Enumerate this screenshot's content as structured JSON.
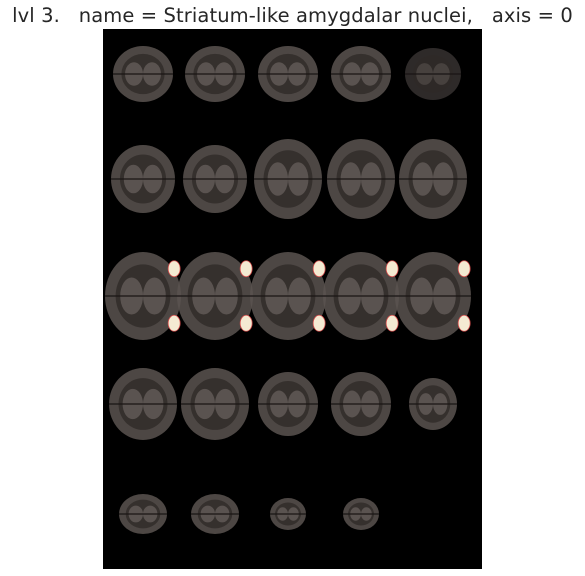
{
  "figure": {
    "title": "lvl 3.   name = Striatum-like amygdalar nuclei,   axis = 0",
    "background": "#ffffff",
    "panel_background": "#000000",
    "tissue_color": "#5a5350",
    "highlight_color": "#f4ead2",
    "highlight_edge_color": "#d24a4a"
  },
  "montage": {
    "rows": 5,
    "cols": 5,
    "slices": [
      {
        "row": 0,
        "col": 0,
        "shape": "olfactory"
      },
      {
        "row": 0,
        "col": 1,
        "shape": "olfactory"
      },
      {
        "row": 0,
        "col": 2,
        "shape": "olfactory"
      },
      {
        "row": 0,
        "col": 3,
        "shape": "olfactory"
      },
      {
        "row": 0,
        "col": 4,
        "shape": "olfactory-faint"
      },
      {
        "row": 1,
        "col": 0,
        "shape": "forebrain-small"
      },
      {
        "row": 1,
        "col": 1,
        "shape": "forebrain-small"
      },
      {
        "row": 1,
        "col": 2,
        "shape": "forebrain"
      },
      {
        "row": 1,
        "col": 3,
        "shape": "forebrain"
      },
      {
        "row": 1,
        "col": 4,
        "shape": "forebrain"
      },
      {
        "row": 2,
        "col": 0,
        "shape": "midbrain",
        "highlight": true
      },
      {
        "row": 2,
        "col": 1,
        "shape": "midbrain",
        "highlight": true
      },
      {
        "row": 2,
        "col": 2,
        "shape": "midbrain",
        "highlight": true
      },
      {
        "row": 2,
        "col": 3,
        "shape": "midbrain",
        "highlight": true
      },
      {
        "row": 2,
        "col": 4,
        "shape": "midbrain",
        "highlight": true
      },
      {
        "row": 3,
        "col": 0,
        "shape": "caudal"
      },
      {
        "row": 3,
        "col": 1,
        "shape": "caudal"
      },
      {
        "row": 3,
        "col": 2,
        "shape": "caudal-small"
      },
      {
        "row": 3,
        "col": 3,
        "shape": "caudal-small"
      },
      {
        "row": 3,
        "col": 4,
        "shape": "caudal-tiny"
      },
      {
        "row": 4,
        "col": 0,
        "shape": "hind"
      },
      {
        "row": 4,
        "col": 1,
        "shape": "hind"
      },
      {
        "row": 4,
        "col": 2,
        "shape": "hind-small"
      },
      {
        "row": 4,
        "col": 3,
        "shape": "hind-small"
      }
    ]
  }
}
